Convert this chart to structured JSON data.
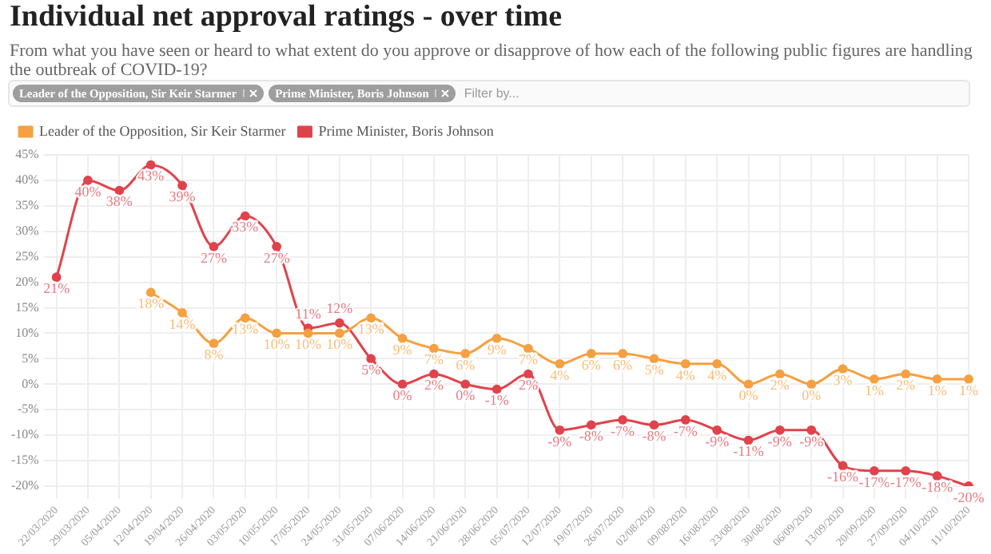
{
  "chart_data": {
    "type": "line",
    "title": "Individual net approval ratings - over time",
    "subtitle": "From what you have seen or heard to what extent do you approve or disapprove of how each of the following public figures are handling the outbreak of COVID-19?",
    "annotations": [
      "Filter by..."
    ],
    "categories": [
      "22/03/2020",
      "29/03/2020",
      "05/04/2020",
      "12/04/2020",
      "19/04/2020",
      "26/04/2020",
      "03/05/2020",
      "10/05/2020",
      "17/05/2020",
      "24/05/2020",
      "31/05/2020",
      "07/06/2020",
      "14/06/2020",
      "21/06/2020",
      "28/06/2020",
      "05/07/2020",
      "12/07/2020",
      "19/07/2020",
      "26/07/2020",
      "02/08/2020",
      "09/08/2020",
      "16/08/2020",
      "23/08/2020",
      "30/08/2020",
      "06/09/2020",
      "13/09/2020",
      "20/09/2020",
      "27/09/2020",
      "04/10/2020",
      "11/10/2020"
    ],
    "series": [
      {
        "name": "Leader of the Opposition, Sir Keir Starmer",
        "color": "#f5a042",
        "values": [
          null,
          null,
          null,
          18,
          14,
          8,
          13,
          10,
          10,
          10,
          13,
          9,
          7,
          6,
          9,
          7,
          4,
          6,
          6,
          5,
          4,
          4,
          0,
          2,
          0,
          3,
          1,
          2,
          1,
          1
        ],
        "value_labels": [
          null,
          null,
          null,
          "18%",
          "14%",
          "8%",
          "13%",
          "10%",
          "10%",
          "10%",
          "13%",
          "9%",
          "7%",
          "6%",
          "9%",
          "7%",
          "4%",
          "6%",
          "6%",
          "5%",
          "4%",
          "4%",
          "0%",
          "2%",
          "0%",
          "3%",
          "1%",
          "2%",
          "1%",
          "1%"
        ]
      },
      {
        "name": "Prime Minister, Boris Johnson",
        "color": "#e0434c",
        "values": [
          21,
          40,
          38,
          43,
          39,
          27,
          33,
          27,
          11,
          12,
          5,
          0,
          2,
          0,
          -1,
          2,
          -9,
          -8,
          -7,
          -8,
          -7,
          -9,
          -11,
          -9,
          -9,
          -16,
          -17,
          -17,
          -18,
          -20
        ],
        "value_labels": [
          "21%",
          "40%",
          "38%",
          "43%",
          "39%",
          "27%",
          "33%",
          "27%",
          "11%",
          "12%",
          "5%",
          "0%",
          "2%",
          "0%",
          "-1%",
          "2%",
          "-9%",
          "-8%",
          "-7%",
          "-8%",
          "-7%",
          "-9%",
          "-11%",
          "-9%",
          "-9%",
          "-16%",
          "-17%",
          "-17%",
          "-18%",
          "-20%"
        ]
      }
    ],
    "ylim": [
      -20,
      45
    ],
    "yticks": [
      {
        "value": -20,
        "label": "-20%"
      },
      {
        "value": -15,
        "label": "-15%"
      },
      {
        "value": -10,
        "label": "-10%"
      },
      {
        "value": -5,
        "label": "-5%"
      },
      {
        "value": 0,
        "label": "0%"
      },
      {
        "value": 5,
        "label": "5%"
      },
      {
        "value": 10,
        "label": "10%"
      },
      {
        "value": 15,
        "label": "15%"
      },
      {
        "value": 20,
        "label": "20%"
      },
      {
        "value": 25,
        "label": "25%"
      },
      {
        "value": 30,
        "label": "30%"
      },
      {
        "value": 35,
        "label": "35%"
      },
      {
        "value": 40,
        "label": "40%"
      },
      {
        "value": 45,
        "label": "45%"
      }
    ],
    "grid": true,
    "legend": "top left",
    "marker": "circle",
    "line_style": "solid"
  }
}
